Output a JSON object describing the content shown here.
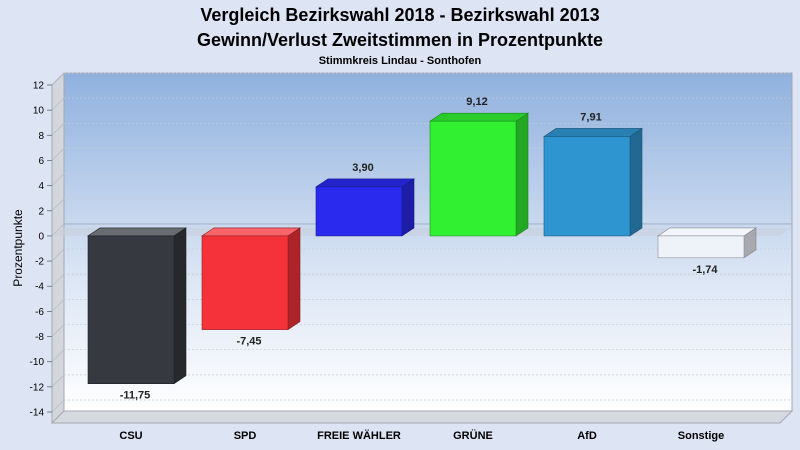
{
  "chart_data": {
    "type": "bar",
    "title": "Vergleich Bezirkswahl 2018 - Bezirkswahl 2013",
    "subtitle": "Gewinn/Verlust Zweitstimmen in Prozentpunkte",
    "caption": "Stimmkreis Lindau - Sonthofen",
    "xlabel": "",
    "ylabel": "Prozentpunkte",
    "ylim": [
      -14,
      12
    ],
    "yticks": [
      12,
      10,
      8,
      6,
      4,
      2,
      0,
      -2,
      -4,
      -6,
      -8,
      -10,
      -12,
      -14
    ],
    "grid": true,
    "categories": [
      "CSU",
      "SPD",
      "FREIE WÄHLER",
      "GRÜNE",
      "AfD",
      "Sonstige"
    ],
    "values": [
      -11.75,
      -7.45,
      3.9,
      9.12,
      7.91,
      -1.74
    ],
    "value_labels": [
      "-11,75",
      "-7,45",
      "3,90",
      "9,12",
      "7,91",
      "-1,74"
    ],
    "colors": [
      "#36393f",
      "#f5323a",
      "#2a2aef",
      "#31f032",
      "#2f95d0",
      "#eef2f9"
    ]
  }
}
